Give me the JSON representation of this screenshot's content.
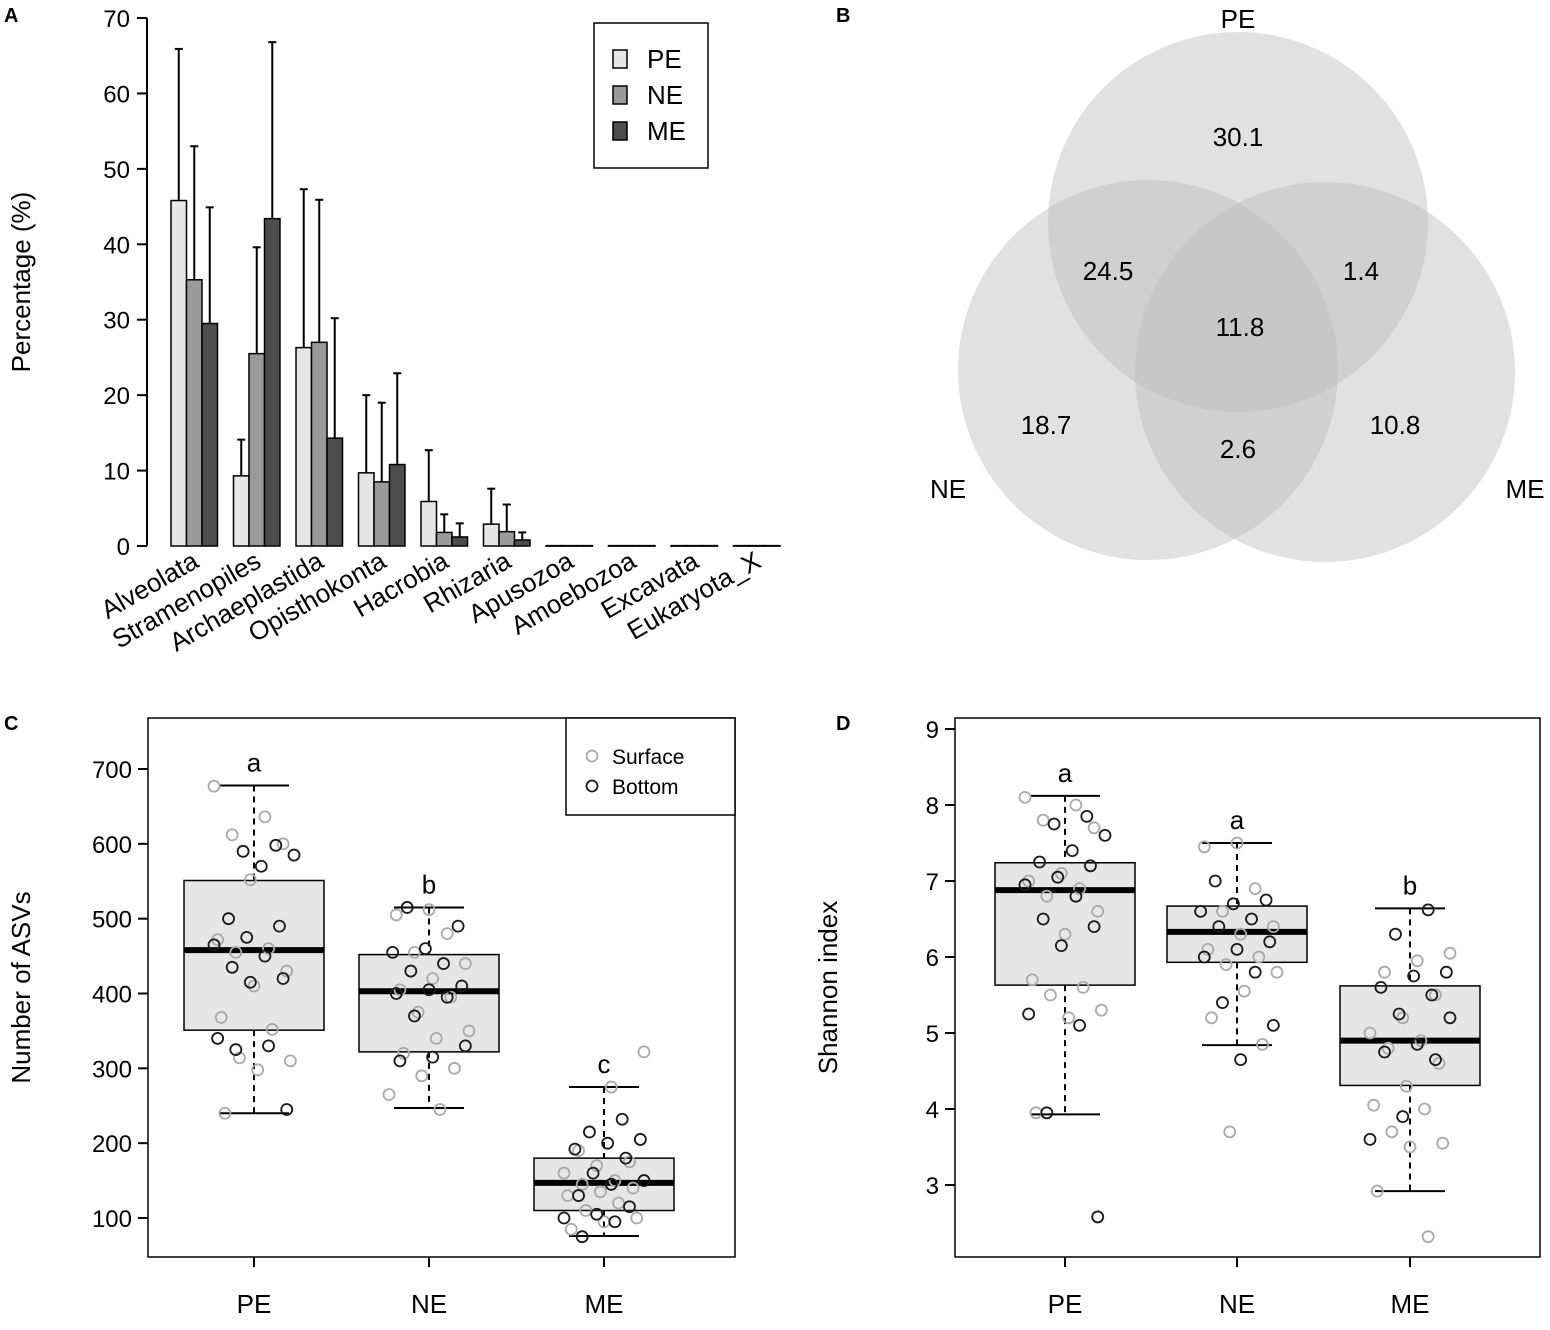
{
  "chart_data": [
    {
      "panel": "A",
      "type": "bar",
      "ylabel": "Percentage (%)",
      "ylim": [
        0,
        70
      ],
      "yticks": [
        0,
        10,
        20,
        30,
        40,
        50,
        60,
        70
      ],
      "categories": [
        "Alveolata",
        "Stramenopiles",
        "Archaeplastida",
        "Opisthokonta",
        "Hacrobia",
        "Rhizaria",
        "Apusozoa",
        "Amoebozoa",
        "Excavata",
        "Eukaryota_X"
      ],
      "legend": {
        "placement": "top-right",
        "entries": [
          "PE",
          "NE",
          "ME"
        ]
      },
      "series": [
        {
          "name": "PE",
          "color": "#e6e6e6",
          "values": [
            45.8,
            9.3,
            26.3,
            9.7,
            5.9,
            2.9,
            0.05,
            0.05,
            0.05,
            0.05
          ],
          "error_upper": [
            65.9,
            14.1,
            47.3,
            20.0,
            12.7,
            7.6,
            0.1,
            0.1,
            0.1,
            0.1
          ]
        },
        {
          "name": "NE",
          "color": "#9a9a9a",
          "values": [
            35.3,
            25.5,
            27.0,
            8.5,
            1.8,
            1.9,
            0.05,
            0.05,
            0.05,
            0.05
          ],
          "error_upper": [
            53.0,
            39.6,
            45.9,
            19.0,
            4.2,
            5.5,
            0.1,
            0.1,
            0.1,
            0.1
          ]
        },
        {
          "name": "ME",
          "color": "#4d4d4d",
          "values": [
            29.5,
            43.4,
            14.3,
            10.8,
            1.2,
            0.8,
            0.05,
            0.05,
            0.05,
            0.05
          ],
          "error_upper": [
            44.9,
            66.8,
            30.2,
            22.9,
            3.0,
            1.8,
            0.1,
            0.1,
            0.1,
            0.1
          ]
        }
      ]
    },
    {
      "panel": "B",
      "type": "venn",
      "sets": [
        "PE",
        "NE",
        "ME"
      ],
      "regions": {
        "PE_only": "30.1",
        "NE_only": "18.7",
        "ME_only": "10.8",
        "PE_NE": "24.5",
        "PE_ME": "1.4",
        "NE_ME": "2.6",
        "all": "11.8"
      }
    },
    {
      "panel": "C",
      "type": "box",
      "ylabel": "Number of ASVs",
      "ylim": [
        50,
        750
      ],
      "yticks": [
        100,
        200,
        300,
        400,
        500,
        600,
        700
      ],
      "categories": [
        "PE",
        "NE",
        "ME"
      ],
      "legend": {
        "placement": "top-right",
        "entries": [
          "Surface",
          "Bottom"
        ]
      },
      "letters": [
        "a",
        "b",
        "c"
      ],
      "boxes": [
        {
          "min": 240,
          "q1": 351,
          "median": 458,
          "q3": 551,
          "max": 678
        },
        {
          "min": 247,
          "q1": 322,
          "median": 403,
          "q3": 452,
          "max": 515
        },
        {
          "min": 76,
          "q1": 110,
          "median": 147,
          "q3": 180,
          "max": 275
        }
      ],
      "surface": [
        [
          677,
          636,
          612,
          600,
          552,
          472,
          460,
          455,
          430,
          410,
          368,
          352,
          314,
          310,
          298,
          240
        ],
        [
          512,
          505,
          480,
          455,
          440,
          420,
          405,
          395,
          375,
          350,
          340,
          320,
          300,
          290,
          265,
          245
        ],
        [
          322,
          275,
          190,
          175,
          170,
          160,
          150,
          145,
          140,
          135,
          130,
          120,
          110,
          100,
          95,
          85
        ]
      ],
      "bottom": [
        [
          598,
          590,
          585,
          570,
          500,
          490,
          475,
          465,
          450,
          435,
          420,
          415,
          340,
          330,
          325,
          245
        ],
        [
          515,
          490,
          460,
          455,
          440,
          430,
          410,
          405,
          400,
          395,
          370,
          330,
          315,
          310
        ],
        [
          232,
          215,
          205,
          200,
          192,
          180,
          160,
          150,
          145,
          130,
          115,
          105,
          100,
          95,
          75
        ]
      ]
    },
    {
      "panel": "D",
      "type": "box",
      "ylabel": "Shannon index",
      "ylim": [
        2.2,
        9.1
      ],
      "yticks": [
        3,
        4,
        5,
        6,
        7,
        8,
        9
      ],
      "categories": [
        "PE",
        "NE",
        "ME"
      ],
      "letters": [
        "a",
        "a",
        "b"
      ],
      "boxes": [
        {
          "min": 3.93,
          "q1": 5.63,
          "median": 6.88,
          "q3": 7.24,
          "max": 8.12
        },
        {
          "min": 4.84,
          "q1": 5.93,
          "median": 6.33,
          "q3": 6.67,
          "max": 7.5
        },
        {
          "min": 2.92,
          "q1": 4.31,
          "median": 4.9,
          "q3": 5.62,
          "max": 6.64
        }
      ],
      "surface": [
        [
          8.1,
          8.0,
          7.8,
          7.7,
          7.1,
          7.0,
          6.9,
          6.8,
          6.6,
          6.3,
          5.7,
          5.6,
          5.5,
          5.3,
          5.2,
          3.95
        ],
        [
          7.5,
          7.45,
          6.9,
          6.6,
          6.4,
          6.3,
          6.1,
          6.0,
          5.9,
          5.8,
          5.55,
          5.2,
          4.85,
          3.7
        ],
        [
          6.05,
          5.95,
          5.8,
          5.5,
          5.2,
          5.0,
          4.9,
          4.8,
          4.6,
          4.3,
          4.05,
          4.0,
          3.7,
          3.55,
          3.5,
          2.92,
          2.32
        ]
      ],
      "bottom": [
        [
          7.85,
          7.75,
          7.6,
          7.4,
          7.25,
          7.2,
          7.05,
          6.95,
          6.8,
          6.5,
          6.4,
          6.15,
          5.25,
          5.1,
          3.95,
          2.58
        ],
        [
          7.0,
          6.75,
          6.7,
          6.6,
          6.5,
          6.4,
          6.2,
          6.1,
          6.0,
          5.8,
          5.4,
          5.1,
          4.65
        ],
        [
          6.62,
          6.3,
          5.8,
          5.75,
          5.6,
          5.5,
          5.25,
          5.2,
          4.85,
          4.75,
          4.65,
          3.9,
          3.6
        ]
      ]
    }
  ],
  "panel_labels": [
    "A",
    "B",
    "C",
    "D"
  ],
  "colors": {
    "surface": "#aaaaaa",
    "bottom": "#1a1a1a",
    "box_fill": "#e6e6e6",
    "venn_fill": "#bdbdbd"
  }
}
